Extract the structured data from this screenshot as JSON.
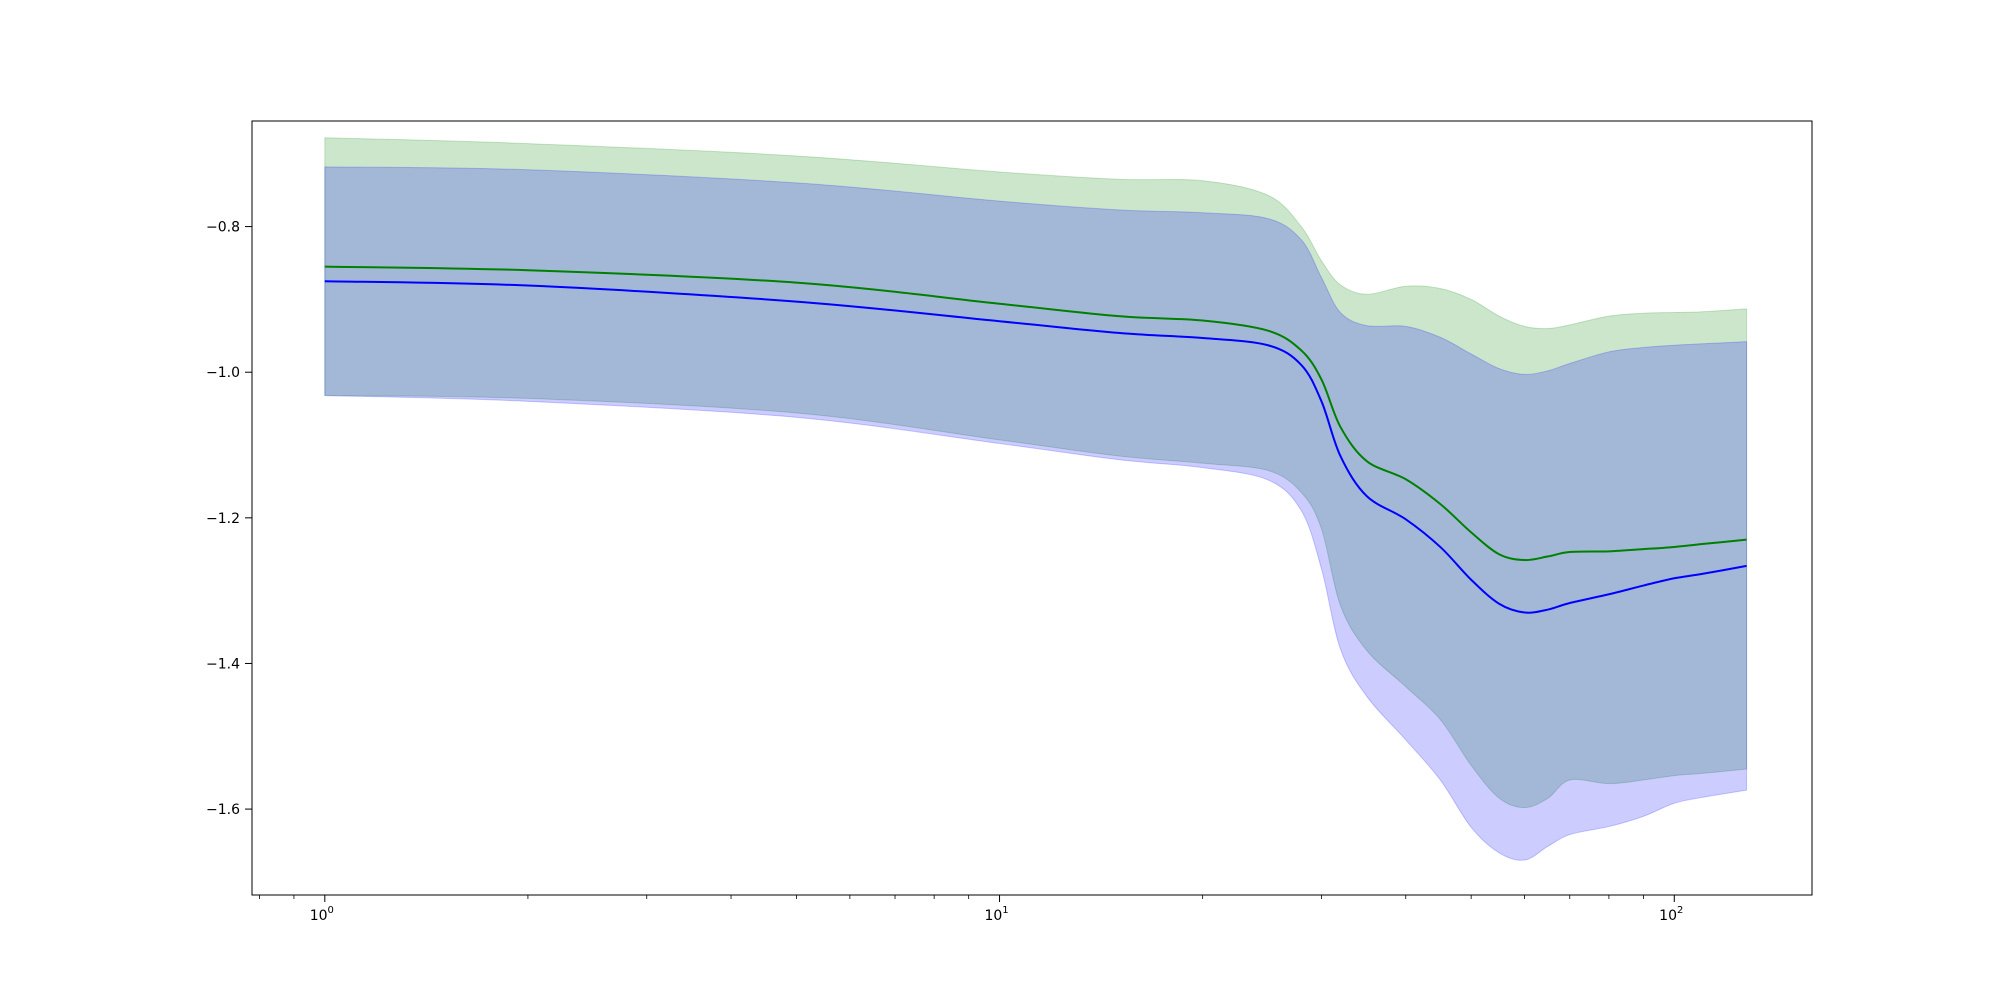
{
  "chart_data": {
    "type": "line",
    "title": "",
    "xlabel": "",
    "ylabel": "",
    "x_scale": "log",
    "xlim": [
      0.78,
      160
    ],
    "ylim": [
      -1.718,
      -0.655
    ],
    "grid": false,
    "legend": "none",
    "x_ticks": [
      {
        "value": 1,
        "base": "10",
        "exp": "0"
      },
      {
        "value": 10,
        "base": "10",
        "exp": "1"
      },
      {
        "value": 100,
        "base": "10",
        "exp": "2"
      }
    ],
    "y_ticks": [
      {
        "value": -0.8,
        "label": "−0.8"
      },
      {
        "value": -1.0,
        "label": "−1.0"
      },
      {
        "value": -1.2,
        "label": "−1.2"
      },
      {
        "value": -1.4,
        "label": "−1.4"
      },
      {
        "value": -1.6,
        "label": "−1.6"
      }
    ],
    "x": [
      1,
      2,
      5,
      10,
      15,
      20,
      25,
      28,
      30,
      32,
      35,
      40,
      45,
      50,
      55,
      60,
      65,
      70,
      80,
      90,
      100,
      110,
      128
    ],
    "series": [
      {
        "color": "#008000",
        "fill_color": "#008000",
        "fill_opacity": 0.2,
        "mean": [
          -0.855,
          -0.86,
          -0.877,
          -0.906,
          -0.923,
          -0.929,
          -0.943,
          -0.97,
          -1.01,
          -1.075,
          -1.122,
          -1.147,
          -1.181,
          -1.22,
          -1.25,
          -1.258,
          -1.253,
          -1.247,
          -1.246,
          -1.243,
          -1.24,
          -1.236,
          -1.23
        ],
        "upper": [
          -0.678,
          -0.686,
          -0.703,
          -0.725,
          -0.735,
          -0.737,
          -0.757,
          -0.8,
          -0.847,
          -0.88,
          -0.893,
          -0.882,
          -0.885,
          -0.9,
          -0.923,
          -0.937,
          -0.94,
          -0.935,
          -0.923,
          -0.919,
          -0.918,
          -0.917,
          -0.913
        ],
        "lower": [
          -1.032,
          -1.036,
          -1.056,
          -1.093,
          -1.115,
          -1.125,
          -1.135,
          -1.165,
          -1.215,
          -1.32,
          -1.382,
          -1.432,
          -1.477,
          -1.54,
          -1.585,
          -1.598,
          -1.585,
          -1.56,
          -1.565,
          -1.56,
          -1.554,
          -1.551,
          -1.545
        ]
      },
      {
        "color": "#0000ff",
        "fill_color": "#0000ff",
        "fill_opacity": 0.2,
        "mean": [
          -0.875,
          -0.881,
          -0.903,
          -0.93,
          -0.946,
          -0.953,
          -0.963,
          -0.99,
          -1.04,
          -1.115,
          -1.17,
          -1.202,
          -1.24,
          -1.285,
          -1.318,
          -1.33,
          -1.326,
          -1.317,
          -1.305,
          -1.293,
          -1.283,
          -1.277,
          -1.266
        ],
        "upper": [
          -0.718,
          -0.722,
          -0.74,
          -0.765,
          -0.777,
          -0.781,
          -0.789,
          -0.818,
          -0.87,
          -0.918,
          -0.936,
          -0.937,
          -0.952,
          -0.975,
          -0.995,
          -1.003,
          -0.998,
          -0.988,
          -0.972,
          -0.966,
          -0.963,
          -0.961,
          -0.958
        ],
        "lower": [
          -1.032,
          -1.04,
          -1.062,
          -1.098,
          -1.12,
          -1.131,
          -1.148,
          -1.19,
          -1.27,
          -1.38,
          -1.445,
          -1.505,
          -1.56,
          -1.625,
          -1.66,
          -1.67,
          -1.651,
          -1.635,
          -1.624,
          -1.61,
          -1.592,
          -1.584,
          -1.574
        ]
      }
    ]
  }
}
